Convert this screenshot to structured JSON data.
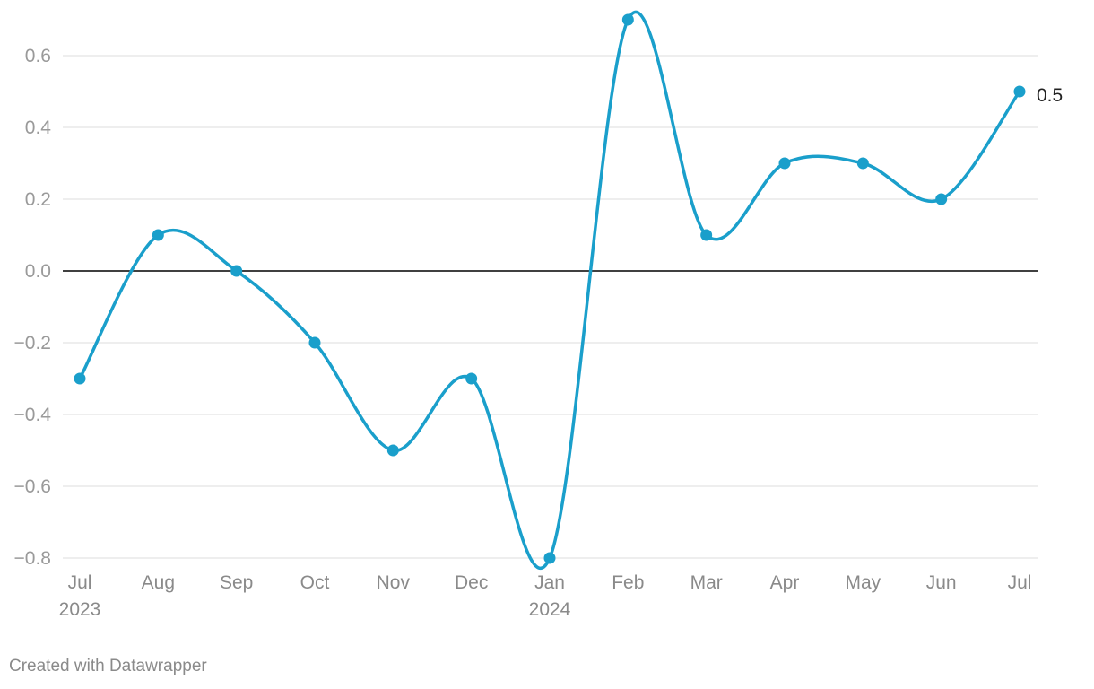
{
  "footer": {
    "text": "Created with Datawrapper"
  },
  "colors": {
    "line": "#1a9fcb",
    "grid": "#e3e3e3",
    "zero_line": "#000000",
    "tick_text": "#9a9a9a"
  },
  "chart_data": {
    "type": "line",
    "x": [
      "Jul 2023",
      "Aug 2023",
      "Sep 2023",
      "Oct 2023",
      "Nov 2023",
      "Dec 2023",
      "Jan 2024",
      "Feb 2024",
      "Mar 2024",
      "Apr 2024",
      "May 2024",
      "Jun 2024",
      "Jul 2024"
    ],
    "tick_labels": [
      {
        "month": "Jul",
        "year": "2023"
      },
      {
        "month": "Aug",
        "year": ""
      },
      {
        "month": "Sep",
        "year": ""
      },
      {
        "month": "Oct",
        "year": ""
      },
      {
        "month": "Nov",
        "year": ""
      },
      {
        "month": "Dec",
        "year": ""
      },
      {
        "month": "Jan",
        "year": "2024"
      },
      {
        "month": "Feb",
        "year": ""
      },
      {
        "month": "Mar",
        "year": ""
      },
      {
        "month": "Apr",
        "year": ""
      },
      {
        "month": "May",
        "year": ""
      },
      {
        "month": "Jun",
        "year": ""
      },
      {
        "month": "Jul",
        "year": ""
      }
    ],
    "series": [
      {
        "values": [
          -0.3,
          0.1,
          0.0,
          -0.2,
          -0.5,
          -0.3,
          -0.8,
          0.7,
          0.1,
          0.3,
          0.3,
          0.2,
          0.5
        ]
      }
    ],
    "end_label": "0.5",
    "yticks": [
      "0.6",
      "0.4",
      "0.2",
      "0.0",
      "−0.2",
      "−0.4",
      "−0.6",
      "−0.8"
    ],
    "ytick_values": [
      0.6,
      0.4,
      0.2,
      0.0,
      -0.2,
      -0.4,
      -0.6,
      -0.8
    ],
    "ylim": [
      -0.8,
      0.7
    ],
    "grid": true,
    "curve": "smooth"
  }
}
